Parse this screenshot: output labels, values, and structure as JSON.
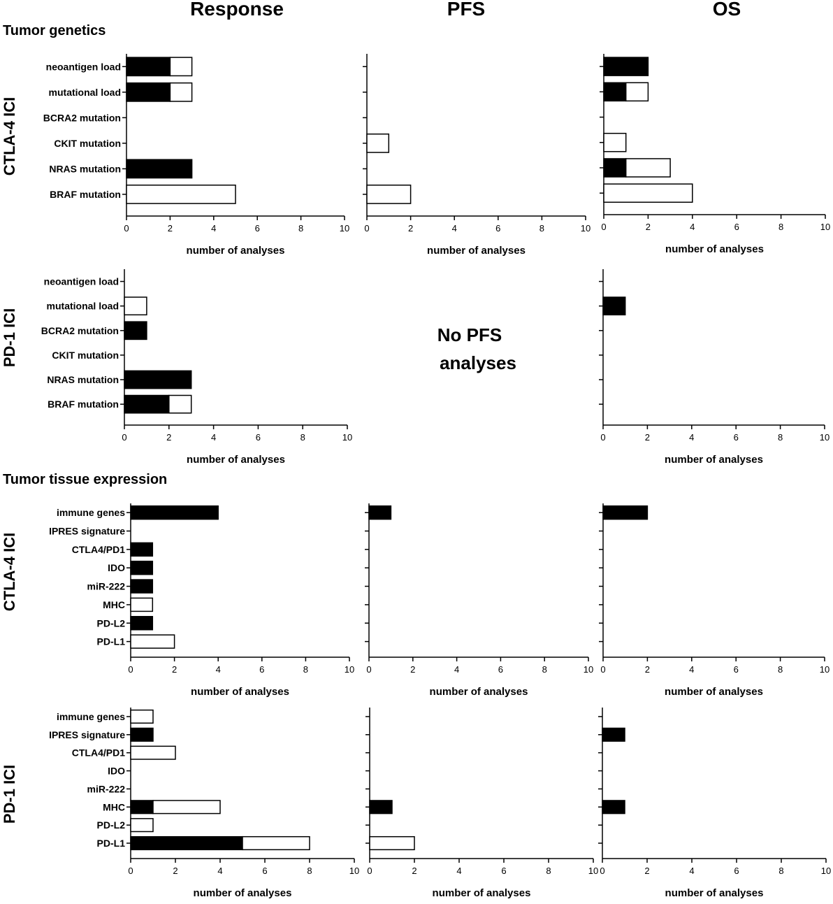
{
  "figure": {
    "column_headers": [
      "Response",
      "PFS",
      "OS"
    ],
    "section_titles": [
      "Tumor genetics",
      "Tumor tissue expression"
    ],
    "row_labels": [
      "CTLA-4 ICI",
      "PD-1 ICI",
      "CTLA-4 ICI",
      "PD-1 ICI"
    ],
    "no_pfs_text": [
      "No PFS",
      "analyses"
    ]
  },
  "colors": {
    "black_fill": "#000000",
    "white_fill": "#ffffff",
    "stroke": "#000000"
  },
  "chart_data": [
    {
      "id": "gen-ctla4-response",
      "type": "bar",
      "orientation": "horizontal",
      "stacked": true,
      "categories": [
        "neoantigen load",
        "mutational load",
        "BCRA2 mutation",
        "CKIT mutation",
        "NRAS mutation",
        "BRAF mutation"
      ],
      "show_category_labels": true,
      "series": [
        {
          "name": "black",
          "values": [
            2,
            2,
            0,
            0,
            3,
            0
          ]
        },
        {
          "name": "white",
          "values": [
            1,
            1,
            0,
            0,
            0,
            5
          ]
        }
      ],
      "xlabel": "number of analyses",
      "xlim": [
        0,
        10
      ],
      "xticks": [
        0,
        2,
        4,
        6,
        8,
        10
      ]
    },
    {
      "id": "gen-ctla4-pfs",
      "type": "bar",
      "orientation": "horizontal",
      "stacked": true,
      "categories": [
        "neoantigen load",
        "mutational load",
        "BCRA2 mutation",
        "CKIT mutation",
        "NRAS mutation",
        "BRAF mutation"
      ],
      "show_category_labels": false,
      "series": [
        {
          "name": "black",
          "values": [
            0,
            0,
            0,
            0,
            0,
            0
          ]
        },
        {
          "name": "white",
          "values": [
            0,
            0,
            0,
            1,
            0,
            2
          ]
        }
      ],
      "xlabel": "number of analyses",
      "xlim": [
        0,
        10
      ],
      "xticks": [
        0,
        2,
        4,
        6,
        8,
        10
      ]
    },
    {
      "id": "gen-ctla4-os",
      "type": "bar",
      "orientation": "horizontal",
      "stacked": true,
      "categories": [
        "neoantigen load",
        "mutational load",
        "BCRA2 mutation",
        "CKIT mutation",
        "NRAS mutation",
        "BRAF mutation"
      ],
      "show_category_labels": false,
      "series": [
        {
          "name": "black",
          "values": [
            2,
            1,
            0,
            0,
            1,
            0
          ]
        },
        {
          "name": "white",
          "values": [
            0,
            1,
            0,
            1,
            2,
            4
          ]
        }
      ],
      "xlabel": "number of analyses",
      "xlim": [
        0,
        10
      ],
      "xticks": [
        0,
        2,
        4,
        6,
        8,
        10
      ]
    },
    {
      "id": "gen-pd1-response",
      "type": "bar",
      "orientation": "horizontal",
      "stacked": true,
      "categories": [
        "neoantigen load",
        "mutational load",
        "BCRA2 mutation",
        "CKIT mutation",
        "NRAS mutation",
        "BRAF mutation"
      ],
      "show_category_labels": true,
      "series": [
        {
          "name": "black",
          "values": [
            0,
            0,
            1,
            0,
            3,
            2
          ]
        },
        {
          "name": "white",
          "values": [
            0,
            1,
            0,
            0,
            0,
            1
          ]
        }
      ],
      "xlabel": "number of analyses",
      "xlim": [
        0,
        10
      ],
      "xticks": [
        0,
        2,
        4,
        6,
        8,
        10
      ]
    },
    {
      "id": "gen-pd1-os",
      "type": "bar",
      "orientation": "horizontal",
      "stacked": true,
      "categories": [
        "neoantigen load",
        "mutational load",
        "BCRA2 mutation",
        "CKIT mutation",
        "NRAS mutation",
        "BRAF mutation"
      ],
      "show_category_labels": false,
      "series": [
        {
          "name": "black",
          "values": [
            0,
            1,
            0,
            0,
            0,
            0
          ]
        },
        {
          "name": "white",
          "values": [
            0,
            0,
            0,
            0,
            0,
            0
          ]
        }
      ],
      "xlabel": "number of analyses",
      "xlim": [
        0,
        10
      ],
      "xticks": [
        0,
        2,
        4,
        6,
        8,
        10
      ]
    },
    {
      "id": "exp-ctla4-response",
      "type": "bar",
      "orientation": "horizontal",
      "stacked": true,
      "categories": [
        "immune genes",
        "IPRES signature",
        "CTLA4/PD1",
        "IDO",
        "miR-222",
        "MHC",
        "PD-L2",
        "PD-L1"
      ],
      "show_category_labels": true,
      "series": [
        {
          "name": "black",
          "values": [
            4,
            0,
            1,
            1,
            1,
            0,
            1,
            0
          ]
        },
        {
          "name": "white",
          "values": [
            0,
            0,
            0,
            0,
            0,
            1,
            0,
            2
          ]
        }
      ],
      "xlabel": "number of analyses",
      "xlim": [
        0,
        10
      ],
      "xticks": [
        0,
        2,
        4,
        6,
        8,
        10
      ]
    },
    {
      "id": "exp-ctla4-pfs",
      "type": "bar",
      "orientation": "horizontal",
      "stacked": true,
      "categories": [
        "immune genes",
        "IPRES signature",
        "CTLA4/PD1",
        "IDO",
        "miR-222",
        "MHC",
        "PD-L2",
        "PD-L1"
      ],
      "show_category_labels": false,
      "series": [
        {
          "name": "black",
          "values": [
            1,
            0,
            0,
            0,
            0,
            0,
            0,
            0
          ]
        },
        {
          "name": "white",
          "values": [
            0,
            0,
            0,
            0,
            0,
            0,
            0,
            0
          ]
        }
      ],
      "xlabel": "number of analyses",
      "xlim": [
        0,
        10
      ],
      "xticks": [
        0,
        2,
        4,
        6,
        8,
        10
      ]
    },
    {
      "id": "exp-ctla4-os",
      "type": "bar",
      "orientation": "horizontal",
      "stacked": true,
      "categories": [
        "immune genes",
        "IPRES signature",
        "CTLA4/PD1",
        "IDO",
        "miR-222",
        "MHC",
        "PD-L2",
        "PD-L1"
      ],
      "show_category_labels": false,
      "series": [
        {
          "name": "black",
          "values": [
            2,
            0,
            0,
            0,
            0,
            0,
            0,
            0
          ]
        },
        {
          "name": "white",
          "values": [
            0,
            0,
            0,
            0,
            0,
            0,
            0,
            0
          ]
        }
      ],
      "xlabel": "number of analyses",
      "xlim": [
        0,
        10
      ],
      "xticks": [
        0,
        2,
        4,
        6,
        8,
        10
      ]
    },
    {
      "id": "exp-pd1-response",
      "type": "bar",
      "orientation": "horizontal",
      "stacked": true,
      "categories": [
        "immune genes",
        "IPRES signature",
        "CTLA4/PD1",
        "IDO",
        "miR-222",
        "MHC",
        "PD-L2",
        "PD-L1"
      ],
      "show_category_labels": true,
      "series": [
        {
          "name": "black",
          "values": [
            0,
            1,
            0,
            0,
            0,
            1,
            0,
            5
          ]
        },
        {
          "name": "white",
          "values": [
            1,
            0,
            2,
            0,
            0,
            3,
            1,
            3
          ]
        }
      ],
      "xlabel": "number of analyses",
      "xlim": [
        0,
        10
      ],
      "xticks": [
        0,
        2,
        4,
        6,
        8,
        10
      ]
    },
    {
      "id": "exp-pd1-pfs",
      "type": "bar",
      "orientation": "horizontal",
      "stacked": true,
      "categories": [
        "immune genes",
        "IPRES signature",
        "CTLA4/PD1",
        "IDO",
        "miR-222",
        "MHC",
        "PD-L2",
        "PD-L1"
      ],
      "show_category_labels": false,
      "series": [
        {
          "name": "black",
          "values": [
            0,
            0,
            0,
            0,
            0,
            1,
            0,
            0
          ]
        },
        {
          "name": "white",
          "values": [
            0,
            0,
            0,
            0,
            0,
            0,
            0,
            2
          ]
        }
      ],
      "xlabel": "number of analyses",
      "xlim": [
        0,
        10
      ],
      "xticks": [
        0,
        2,
        4,
        6,
        8,
        10
      ]
    },
    {
      "id": "exp-pd1-os",
      "type": "bar",
      "orientation": "horizontal",
      "stacked": true,
      "categories": [
        "immune genes",
        "IPRES signature",
        "CTLA4/PD1",
        "IDO",
        "miR-222",
        "MHC",
        "PD-L2",
        "PD-L1"
      ],
      "show_category_labels": false,
      "series": [
        {
          "name": "black",
          "values": [
            0,
            1,
            0,
            0,
            0,
            1,
            0,
            0
          ]
        },
        {
          "name": "white",
          "values": [
            0,
            0,
            0,
            0,
            0,
            0,
            0,
            0
          ]
        }
      ],
      "xlabel": "number of analyses",
      "xlim": [
        0,
        10
      ],
      "xticks": [
        0,
        2,
        4,
        6,
        8,
        10
      ]
    }
  ]
}
